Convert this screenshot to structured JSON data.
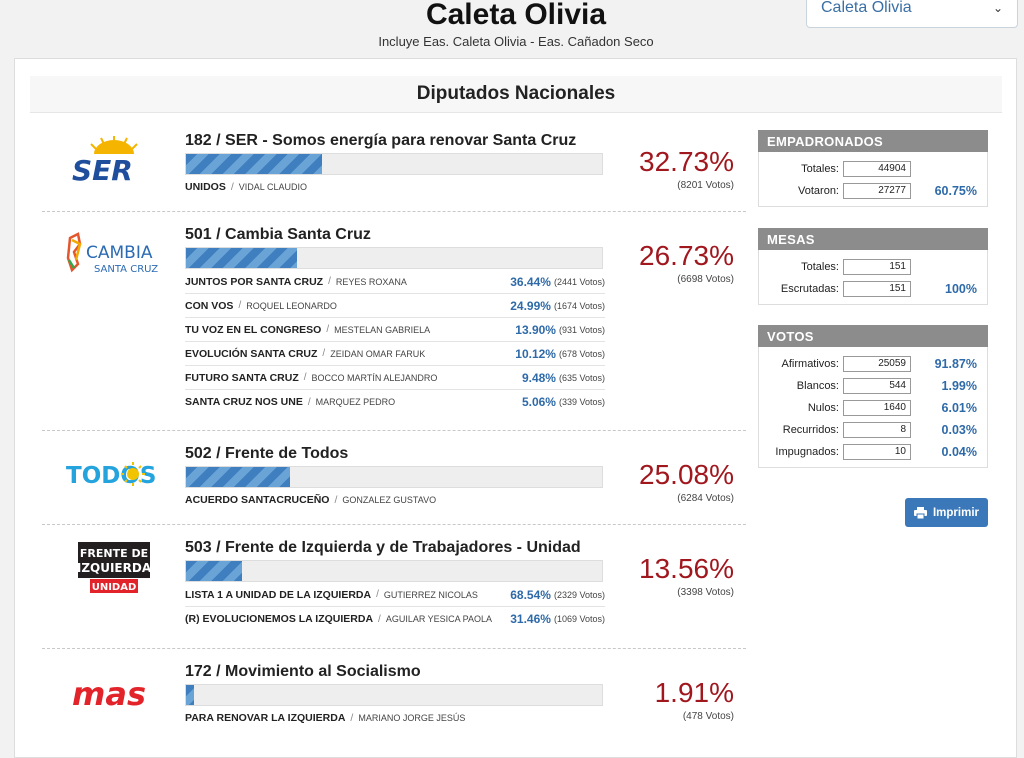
{
  "header": {
    "title": "Caleta Olivia",
    "subtitle": "Incluye Eas. Caleta Olivia - Eas. Cañadon Seco",
    "district_select": "Caleta Olivia"
  },
  "section_title": "Diputados Nacionales",
  "parties": [
    {
      "name": "182 / SER - Somos energía para renovar Santa Cruz",
      "logo_text": "SER",
      "percent": "32.73%",
      "votes": "(8201 Votos)",
      "bar_fraction": 0.3273,
      "lists": [
        {
          "name": "UNIDOS",
          "candidate": "VIDAL CLAUDIO"
        }
      ]
    },
    {
      "name": "501 / Cambia Santa Cruz",
      "logo_text_top": "CAMBIA",
      "logo_text_bottom": "SANTA CRUZ",
      "percent": "26.73%",
      "votes": "(6698 Votos)",
      "bar_fraction": 0.2673,
      "lists": [
        {
          "name": "JUNTOS POR SANTA CRUZ",
          "candidate": "REYES ROXANA",
          "percent": "36.44%",
          "votes": "(2441 Votos)"
        },
        {
          "name": "CON VOS",
          "candidate": "ROQUEL LEONARDO",
          "percent": "24.99%",
          "votes": "(1674 Votos)"
        },
        {
          "name": "TU VOZ EN EL CONGRESO",
          "candidate": "MESTELAN GABRIELA",
          "percent": "13.90%",
          "votes": "(931 Votos)"
        },
        {
          "name": "EVOLUCIÓN SANTA CRUZ",
          "candidate": "ZEIDAN OMAR FARUK",
          "percent": "10.12%",
          "votes": "(678 Votos)"
        },
        {
          "name": "FUTURO SANTA CRUZ",
          "candidate": "BOCCO MARTÍN ALEJANDRO",
          "percent": "9.48%",
          "votes": "(635 Votos)"
        },
        {
          "name": "SANTA CRUZ NOS UNE",
          "candidate": "MARQUEZ PEDRO",
          "percent": "5.06%",
          "votes": "(339 Votos)"
        }
      ]
    },
    {
      "name": "502 / Frente de Todos",
      "logo_text": "TODOS",
      "percent": "25.08%",
      "votes": "(6284 Votos)",
      "bar_fraction": 0.2508,
      "lists": [
        {
          "name": "ACUERDO SANTACRUCEÑO",
          "candidate": "GONZALEZ GUSTAVO"
        }
      ]
    },
    {
      "name": "503 / Frente de Izquierda y de Trabajadores - Unidad",
      "logo_text_top": "FRENTE DE",
      "logo_text_mid": "IZQUIERDA",
      "logo_text_bottom": "UNIDAD",
      "percent": "13.56%",
      "votes": "(3398 Votos)",
      "bar_fraction": 0.1356,
      "lists": [
        {
          "name": "LISTA 1 A UNIDAD DE LA IZQUIERDA",
          "candidate": "GUTIERREZ NICOLAS",
          "percent": "68.54%",
          "votes": "(2329 Votos)"
        },
        {
          "name": "(R) EVOLUCIONEMOS LA IZQUIERDA",
          "candidate": "AGUILAR YESICA PAOLA",
          "percent": "31.46%",
          "votes": "(1069 Votos)"
        }
      ]
    },
    {
      "name": "172 / Movimiento al Socialismo",
      "logo_text": "mas",
      "percent": "1.91%",
      "votes": "(478 Votos)",
      "bar_fraction": 0.0191,
      "lists": [
        {
          "name": "PARA RENOVAR LA IZQUIERDA",
          "candidate": "MARIANO JORGE JESÚS"
        }
      ]
    }
  ],
  "empadronados": {
    "title": "EMPADRONADOS",
    "rows": [
      {
        "label": "Totales:",
        "value": "44904",
        "percent": ""
      },
      {
        "label": "Votaron:",
        "value": "27277",
        "percent": "60.75%"
      }
    ]
  },
  "mesas": {
    "title": "MESAS",
    "rows": [
      {
        "label": "Totales:",
        "value": "151",
        "percent": ""
      },
      {
        "label": "Escrutadas:",
        "value": "151",
        "percent": "100%"
      }
    ]
  },
  "votos": {
    "title": "VOTOS",
    "rows": [
      {
        "label": "Afirmativos:",
        "value": "25059",
        "percent": "91.87%"
      },
      {
        "label": "Blancos:",
        "value": "544",
        "percent": "1.99%"
      },
      {
        "label": "Nulos:",
        "value": "1640",
        "percent": "6.01%"
      },
      {
        "label": "Recurridos:",
        "value": "8",
        "percent": "0.03%"
      },
      {
        "label": "Impugnados:",
        "value": "10",
        "percent": "0.04%"
      }
    ]
  },
  "print_label": "Imprimir",
  "colors": {
    "percent_red": "#a0171e",
    "bar_blue": "#3f7fc0",
    "stat_blue": "#2e6aa8",
    "button_blue": "#3b78b9",
    "stats_header": "#8c8c8c"
  }
}
